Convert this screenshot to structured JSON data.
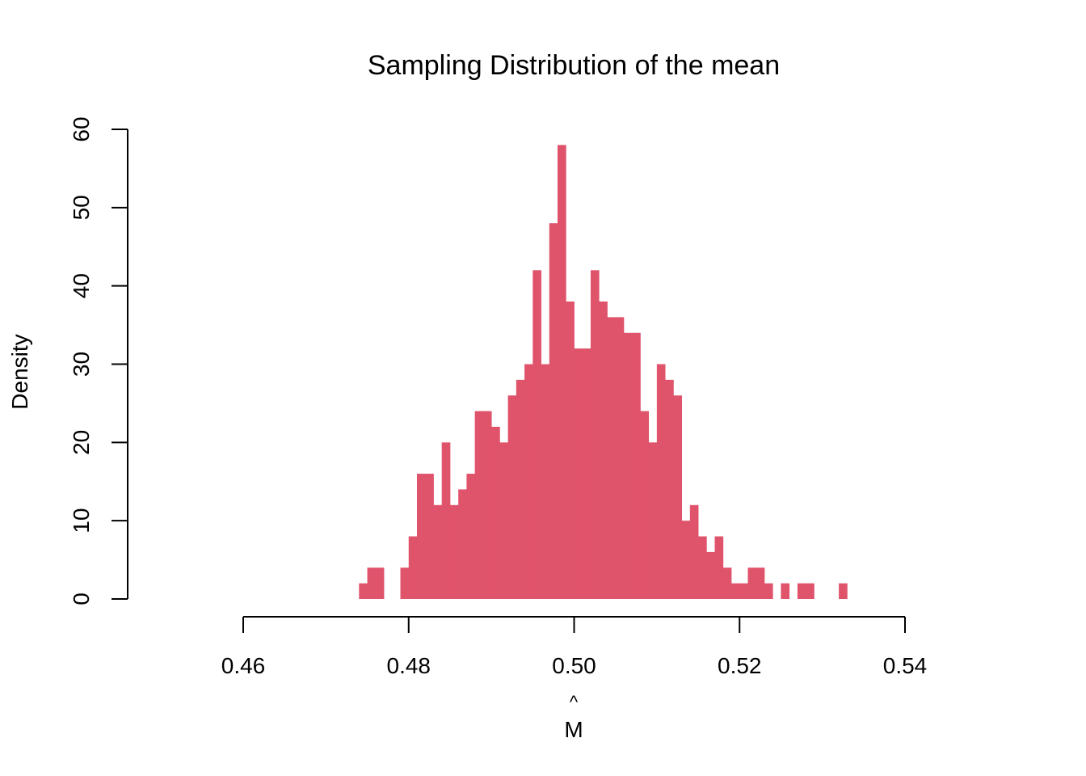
{
  "chart_data": {
    "type": "bar",
    "title": "Sampling Distribution of the mean",
    "xlabel": "M̂",
    "xlabel_base": "M",
    "xlabel_accent": "^",
    "ylabel": "Density",
    "xlim": [
      0.46,
      0.54
    ],
    "ylim": [
      0,
      60
    ],
    "x_ticks": [
      "0.46",
      "0.48",
      "0.50",
      "0.52",
      "0.54"
    ],
    "x_tick_values": [
      0.46,
      0.48,
      0.5,
      0.52,
      0.54
    ],
    "y_ticks": [
      "0",
      "10",
      "20",
      "30",
      "40",
      "50",
      "60"
    ],
    "y_tick_values": [
      0,
      10,
      20,
      30,
      40,
      50,
      60
    ],
    "grid": false,
    "bar_color": "#DF536B",
    "bin_width": 0.001,
    "bin_start": 0.474,
    "values": [
      2,
      4,
      4,
      0,
      0,
      4,
      8,
      16,
      16,
      12,
      20,
      12,
      14,
      16,
      24,
      24,
      22,
      20,
      26,
      28,
      30,
      42,
      30,
      48,
      58,
      38,
      32,
      32,
      42,
      38,
      36,
      36,
      34,
      34,
      24,
      20,
      30,
      28,
      26,
      10,
      12,
      8,
      6,
      8,
      4,
      2,
      2,
      4,
      4,
      2,
      0,
      2,
      0,
      2,
      2,
      0,
      0,
      0,
      2
    ]
  }
}
